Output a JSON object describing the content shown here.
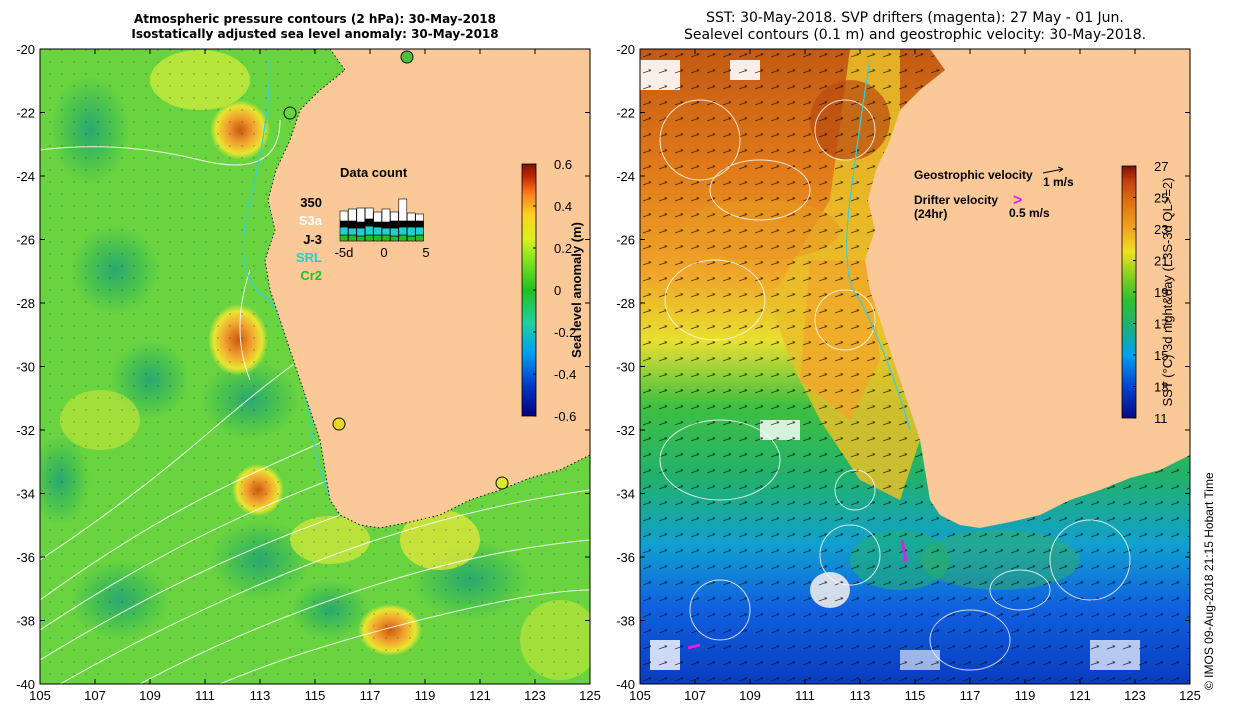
{
  "left_panel": {
    "title_line1": "Atmospheric pressure contours (2 hPa): 30-May-2018",
    "title_line2": "Isostatically adjusted sea level anomaly: 30-May-2018",
    "x_ticks": [
      "105",
      "107",
      "109",
      "111",
      "113",
      "115",
      "117",
      "119",
      "121",
      "123",
      "125"
    ],
    "y_ticks": [
      "-20",
      "-22",
      "-24",
      "-26",
      "-28",
      "-30",
      "-32",
      "-34",
      "-36",
      "-38",
      "-40"
    ],
    "colorbar": {
      "label": "Sea level anomaly (m)",
      "ticks": [
        "0.6",
        "0.4",
        "0.2",
        "0",
        "-0.2",
        "-0.4",
        "-0.6"
      ],
      "colors": [
        "#00007f",
        "#0038c8",
        "#00a0f0",
        "#20d0a0",
        "#20c020",
        "#70e020",
        "#d8f020",
        "#ffd020",
        "#ff8020",
        "#c02800",
        "#7f1400"
      ]
    },
    "data_count": {
      "title": "Data count",
      "labels": [
        "350",
        "S3a",
        "J-3",
        "SRL",
        "Cr2"
      ],
      "label_colors": [
        "#000000",
        "#ffffff",
        "#000000",
        "#20d0d0",
        "#20c020"
      ],
      "x_ticks": [
        "-5d",
        "0",
        "5"
      ]
    }
  },
  "right_panel": {
    "title_line1": "SST: 30-May-2018. SVP drifters (magenta): 27 May - 01 Jun.",
    "title_line2": "Sealevel contours (0.1 m) and geostrophic velocity: 30-May-2018.",
    "x_ticks": [
      "105",
      "107",
      "109",
      "111",
      "113",
      "115",
      "117",
      "119",
      "121",
      "123",
      "125"
    ],
    "y_ticks": [
      "-20",
      "-22",
      "-24",
      "-26",
      "-28",
      "-30",
      "-32",
      "-34",
      "-36",
      "-38",
      "-40"
    ],
    "colorbar": {
      "label": "SST (°C) 3d night&day (L3S-3d QL>=2)",
      "ticks": [
        "27",
        "25",
        "23",
        "21",
        "19",
        "17",
        "15",
        "13",
        "11"
      ],
      "colors": [
        "#0a0a80",
        "#0040d0",
        "#00a0f0",
        "#20b070",
        "#30c030",
        "#80d020",
        "#f0e020",
        "#f0a020",
        "#e07010",
        "#c04010",
        "#801000"
      ]
    },
    "geostrophic_label": "Geostrophic velocity",
    "geostrophic_scale": "1 m/s",
    "drifter_label_line1": "Drifter velocity",
    "drifter_label_line2": "(24hr)",
    "drifter_scale": "0.5 m/s",
    "drifter_symbol": ">"
  },
  "stamp": "© IMOS 09-Aug-2018 21:15 Hobart Time"
}
